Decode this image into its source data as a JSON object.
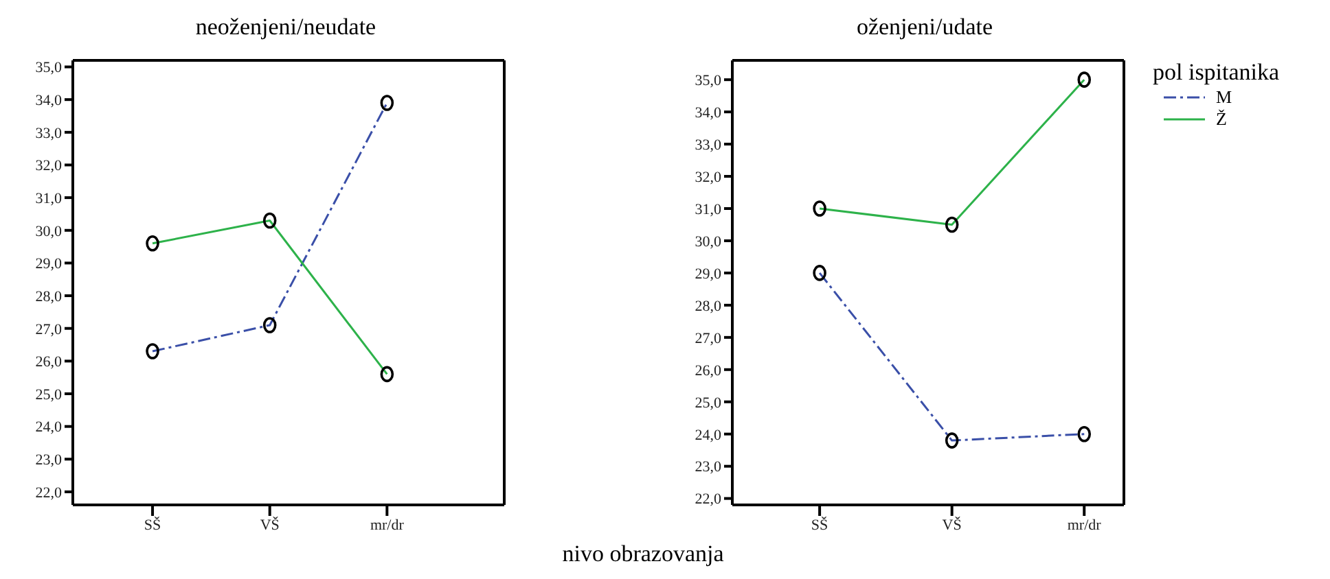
{
  "chart_data": [
    {
      "type": "line",
      "title": "neoženjeni/neudate",
      "xlabel": "nivo obrazovanja",
      "categories": [
        "SŠ",
        "VŠ",
        "mr/dr"
      ],
      "series": [
        {
          "color": "#3a4fa8",
          "values": [
            26.3,
            27.1,
            33.9
          ],
          "line_style": "dashed"
        },
        {
          "color": "#2db24a",
          "values": [
            29.6,
            30.3,
            25.6
          ],
          "line_style": "solid"
        }
      ],
      "ylim": [
        21.6,
        35.2
      ],
      "yticks": [
        {
          "value": 22,
          "label": "22,0"
        },
        {
          "value": 23,
          "label": "23,0"
        },
        {
          "value": 24,
          "label": "24,0"
        },
        {
          "value": 25,
          "label": "25,0"
        },
        {
          "value": 26,
          "label": "26,0"
        },
        {
          "value": 27,
          "label": "27,0"
        },
        {
          "value": 28,
          "label": "28,0"
        },
        {
          "value": 29,
          "label": "29,0"
        },
        {
          "value": 30,
          "label": "30,0"
        },
        {
          "value": 31,
          "label": "31,0"
        },
        {
          "value": 32,
          "label": "32,0"
        },
        {
          "value": 33,
          "label": "33,0"
        },
        {
          "value": 34,
          "label": "34,0"
        },
        {
          "value": 35,
          "label": "35,0"
        }
      ],
      "grid": false,
      "legend": false,
      "marker": "circle"
    },
    {
      "type": "line",
      "title": "oženjeni/udate",
      "legend_title": "pol ispitanika",
      "categories": [
        "SŠ",
        "VŠ",
        "mr/dr"
      ],
      "series": [
        {
          "name": "M",
          "color": "#3a4fa8",
          "values": [
            29.0,
            23.8,
            24.0
          ],
          "line_style": "dashed"
        },
        {
          "name": "Ž",
          "color": "#2db24a",
          "values": [
            31.0,
            30.5,
            35.0
          ],
          "line_style": "solid"
        }
      ],
      "ylim": [
        21.8,
        35.6
      ],
      "yticks": [
        {
          "value": 22,
          "label": "22,0"
        },
        {
          "value": 23,
          "label": "23,0"
        },
        {
          "value": 24,
          "label": "24,0"
        },
        {
          "value": 25,
          "label": "25,0"
        },
        {
          "value": 26,
          "label": "26,0"
        },
        {
          "value": 27,
          "label": "27,0"
        },
        {
          "value": 28,
          "label": "28,0"
        },
        {
          "value": 29,
          "label": "29,0"
        },
        {
          "value": 30,
          "label": "30,0"
        },
        {
          "value": 31,
          "label": "31,0"
        },
        {
          "value": 32,
          "label": "32,0"
        },
        {
          "value": 33,
          "label": "33,0"
        },
        {
          "value": 34,
          "label": "34,0"
        },
        {
          "value": 35,
          "label": "35,0"
        }
      ],
      "grid": false,
      "legend": "right",
      "marker": "circle"
    }
  ]
}
